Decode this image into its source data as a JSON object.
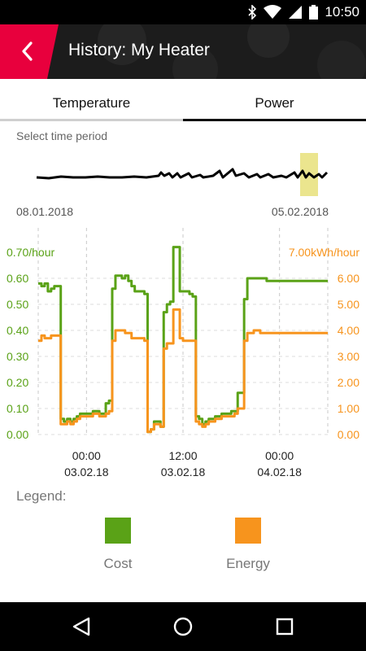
{
  "status_bar": {
    "time": "10:50",
    "icons": [
      "bluetooth-icon",
      "wifi-icon",
      "cell-signal-icon",
      "battery-icon"
    ]
  },
  "app_bar": {
    "title": "History: My Heater",
    "back_icon": "chevron-left-icon",
    "accent_color": "#e8003d"
  },
  "tabs": [
    {
      "label": "Temperature",
      "selected": false
    },
    {
      "label": "Power",
      "selected": true
    }
  ],
  "period_selector": {
    "label": "Select time period",
    "start_date": "08.01.2018",
    "end_date": "05.02.2018",
    "highlight_color": "#e8e07a"
  },
  "chart_data": {
    "type": "line",
    "title": "",
    "left_axis": {
      "unit_label": "0.70/hour",
      "ticks": [
        "0.60",
        "0.50",
        "0.40",
        "0.30",
        "0.20",
        "0.10",
        "0.00"
      ],
      "ylim": [
        0,
        0.7
      ],
      "color": "#5aa217"
    },
    "right_axis": {
      "unit_label": "7.00kWh/hour",
      "ticks": [
        "6.00",
        "5.00",
        "4.00",
        "3.00",
        "2.00",
        "1.00",
        "0.00"
      ],
      "ylim": [
        0,
        7.0
      ],
      "color": "#f7941d"
    },
    "x_ticks": [
      {
        "time": "00:00",
        "date": "03.02.18"
      },
      {
        "time": "12:00",
        "date": "03.02.18"
      },
      {
        "time": "00:00",
        "date": "04.02.18"
      }
    ],
    "x_hours": [
      0,
      2,
      4,
      6,
      8,
      10,
      12,
      14,
      16,
      18,
      20,
      22,
      24,
      26,
      28,
      30
    ],
    "x_hours_range": [
      -6,
      30
    ],
    "grid": true,
    "series": [
      {
        "name": "Cost",
        "color": "#5aa217",
        "axis": "left",
        "x": [
          -6,
          -5.6,
          -5.2,
          -4.8,
          -4.4,
          -4,
          -3.6,
          -3.2,
          -2.8,
          -2.4,
          -2,
          -1.6,
          -1.2,
          -0.8,
          -0.4,
          0,
          0.4,
          0.8,
          1.2,
          1.6,
          2,
          2.4,
          2.8,
          3.2,
          3.6,
          4,
          4.4,
          4.8,
          5.2,
          5.6,
          6,
          6.4,
          6.8,
          7.2,
          7.6,
          8,
          8.4,
          8.8,
          9.2,
          9.6,
          10,
          10.4,
          10.8,
          11.2,
          11.6,
          12,
          12.4,
          12.8,
          13.2,
          13.6,
          14,
          14.4,
          14.8,
          15.2,
          15.6,
          16,
          16.4,
          16.8,
          17.2,
          17.6,
          18,
          18.4,
          18.8,
          19.2,
          19.6,
          20,
          20.4,
          20.8,
          21.2,
          21.6,
          22,
          22.4,
          22.8,
          23.2,
          23.6,
          24,
          24.4,
          24.8,
          25.2,
          25.6,
          26,
          26.4,
          26.8,
          27.2,
          27.6,
          28,
          28.4,
          28.8,
          29.2,
          29.6,
          30
        ],
        "values": [
          0.58,
          0.57,
          0.58,
          0.55,
          0.56,
          0.57,
          0.57,
          0.06,
          0.05,
          0.06,
          0.05,
          0.06,
          0.07,
          0.08,
          0.08,
          0.08,
          0.08,
          0.09,
          0.09,
          0.08,
          0.08,
          0.12,
          0.13,
          0.56,
          0.61,
          0.61,
          0.6,
          0.61,
          0.59,
          0.57,
          0.55,
          0.55,
          0.55,
          0.54,
          0.01,
          0.02,
          0.05,
          0.05,
          0.03,
          0.47,
          0.5,
          0.51,
          0.72,
          0.72,
          0.55,
          0.55,
          0.55,
          0.54,
          0.53,
          0.07,
          0.06,
          0.04,
          0.05,
          0.06,
          0.06,
          0.07,
          0.07,
          0.08,
          0.08,
          0.08,
          0.09,
          0.09,
          0.16,
          0.16,
          0.52,
          0.6,
          0.6,
          0.6,
          0.6,
          0.6,
          0.6,
          0.59,
          0.59,
          0.59,
          0.59,
          0.59,
          0.59,
          0.59,
          0.59,
          0.59,
          0.59,
          0.59,
          0.59,
          0.59,
          0.59,
          0.59,
          0.59,
          0.59,
          0.59,
          0.59,
          0.59
        ]
      },
      {
        "name": "Energy",
        "color": "#f7941d",
        "axis": "right",
        "x": [
          -6,
          -5.6,
          -5.2,
          -4.8,
          -4.4,
          -4,
          -3.6,
          -3.2,
          -2.8,
          -2.4,
          -2,
          -1.6,
          -1.2,
          -0.8,
          -0.4,
          0,
          0.4,
          0.8,
          1.2,
          1.6,
          2,
          2.4,
          2.8,
          3.2,
          3.6,
          4,
          4.4,
          4.8,
          5.2,
          5.6,
          6,
          6.4,
          6.8,
          7.2,
          7.6,
          8,
          8.4,
          8.8,
          9.2,
          9.6,
          10,
          10.4,
          10.8,
          11.2,
          11.6,
          12,
          12.4,
          12.8,
          13.2,
          13.6,
          14,
          14.4,
          14.8,
          15.2,
          15.6,
          16,
          16.4,
          16.8,
          17.2,
          17.6,
          18,
          18.4,
          18.8,
          19.2,
          19.6,
          20,
          20.4,
          20.8,
          21.2,
          21.6,
          22,
          22.4,
          22.8,
          23.2,
          23.6,
          24,
          24.4,
          24.8,
          25.2,
          25.6,
          26,
          26.4,
          26.8,
          27.2,
          27.6,
          28,
          28.4,
          28.8,
          29.2,
          29.6,
          30
        ],
        "values": [
          3.6,
          3.8,
          3.7,
          3.7,
          3.8,
          3.8,
          3.8,
          0.4,
          0.4,
          0.5,
          0.4,
          0.5,
          0.6,
          0.7,
          0.7,
          0.7,
          0.7,
          0.8,
          0.8,
          0.7,
          0.7,
          0.8,
          0.9,
          3.6,
          4.0,
          4.0,
          4.0,
          3.9,
          3.9,
          3.7,
          3.7,
          3.7,
          3.7,
          3.6,
          0.1,
          0.2,
          0.4,
          0.4,
          0.3,
          3.3,
          3.5,
          3.5,
          4.8,
          4.8,
          3.7,
          3.6,
          3.6,
          3.6,
          3.6,
          0.5,
          0.4,
          0.3,
          0.4,
          0.5,
          0.5,
          0.6,
          0.6,
          0.7,
          0.7,
          0.7,
          0.7,
          0.8,
          1.0,
          1.0,
          3.6,
          3.9,
          3.9,
          4.0,
          4.0,
          3.9,
          3.9,
          3.9,
          3.9,
          3.9,
          3.9,
          3.9,
          3.9,
          3.9,
          3.9,
          3.9,
          3.9,
          3.9,
          3.9,
          3.9,
          3.9,
          3.9,
          3.9,
          3.9,
          3.9,
          3.9,
          3.9
        ]
      }
    ]
  },
  "legend": {
    "title": "Legend:",
    "items": [
      {
        "label": "Cost",
        "color": "#5aa217"
      },
      {
        "label": "Energy",
        "color": "#f7941d"
      }
    ]
  },
  "nav_bar": {
    "icons": [
      "back-triangle-icon",
      "home-circle-icon",
      "recents-square-icon"
    ]
  }
}
